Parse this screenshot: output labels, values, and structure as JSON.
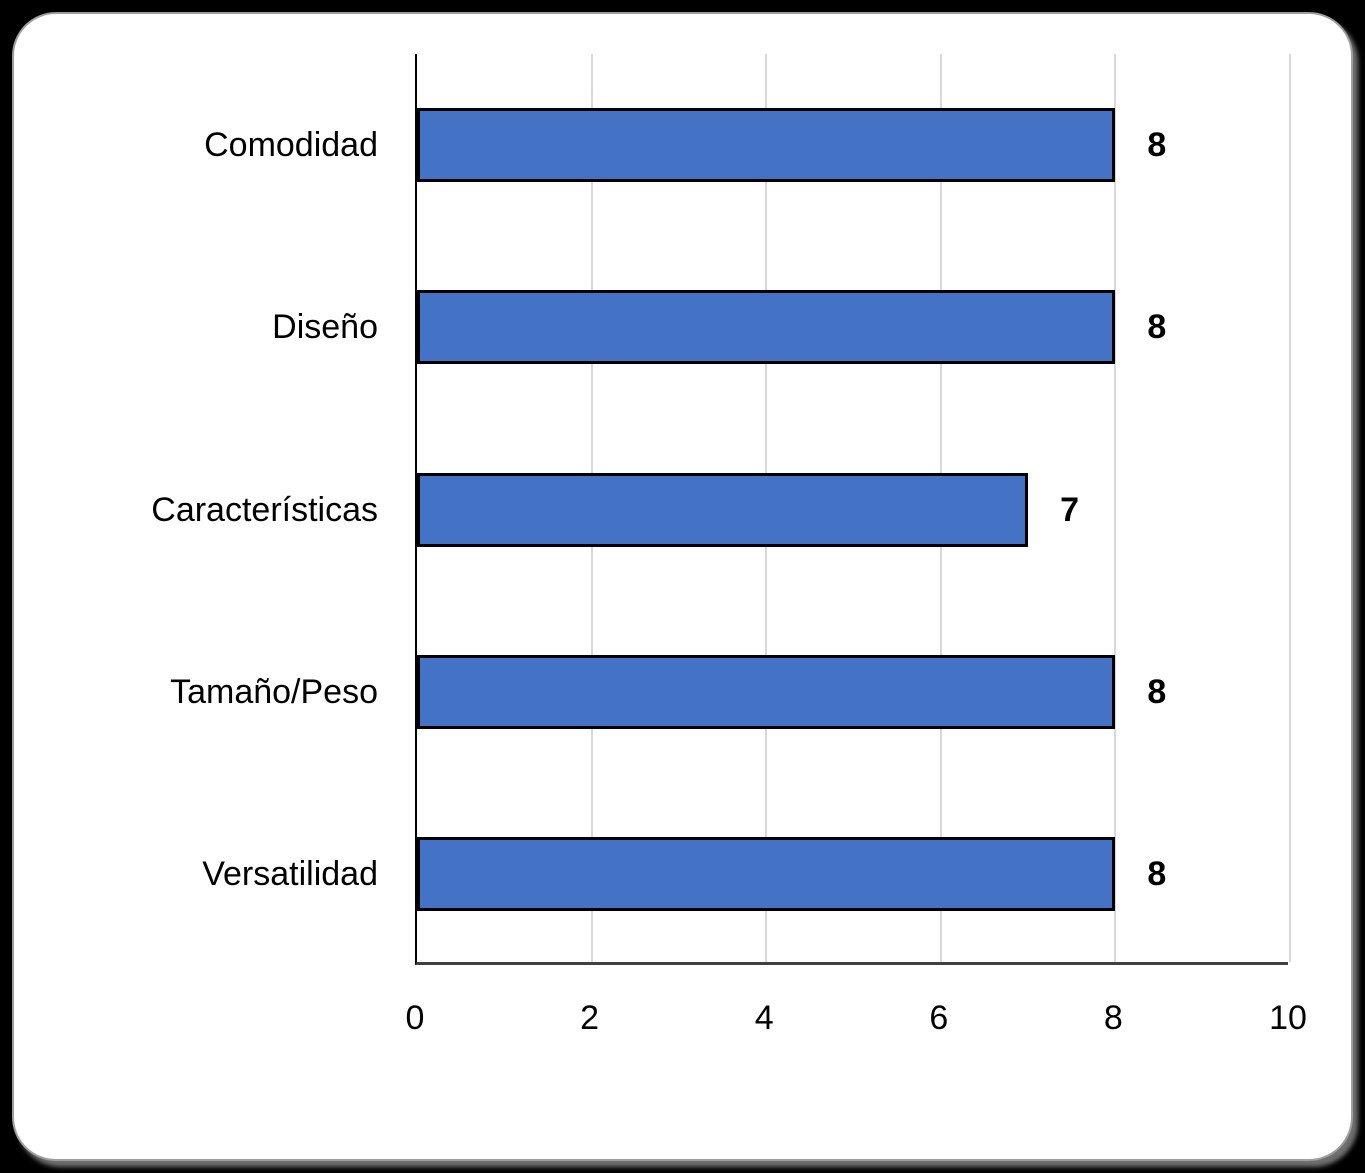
{
  "chart_data": {
    "type": "bar",
    "orientation": "horizontal",
    "title": "",
    "xlabel": "",
    "ylabel": "",
    "categories": [
      "Comodidad",
      "Diseño",
      "Características",
      "Tamaño/Peso",
      "Versatilidad"
    ],
    "values": [
      8,
      8,
      7,
      8,
      8
    ],
    "data_labels": [
      "8",
      "8",
      "7",
      "8",
      "8"
    ],
    "xlim": [
      0,
      10
    ],
    "x_ticks": [
      "0",
      "2",
      "4",
      "6",
      "8",
      "10"
    ],
    "grid": true,
    "legend": false,
    "colors": {
      "bar_fill": "#4472C4",
      "bar_border": "#000000",
      "gridline": "#D8D8D8",
      "y_axis_line": "#000000",
      "x_baseline": "#3F3F3F",
      "card_background": "#FFFFFF",
      "page_background": "#000000",
      "text": "#000000"
    }
  }
}
